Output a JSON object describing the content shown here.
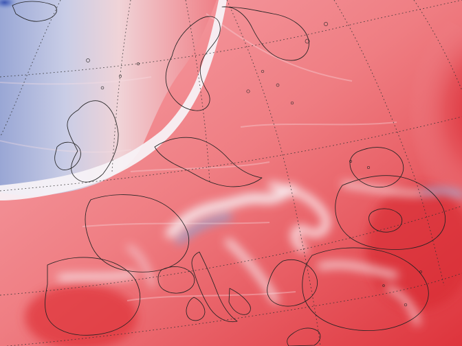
{
  "map": {
    "type": "temperature-anomaly",
    "region": "Europe",
    "projection": "conic",
    "colors": {
      "cold_strong": "#3f56b5",
      "cold": "#aab7df",
      "neutral": "#f3f0f6",
      "warm": "#ef9aa0",
      "warm_strong": "#d61f29"
    },
    "legend_visible": false,
    "title_visible": false
  }
}
